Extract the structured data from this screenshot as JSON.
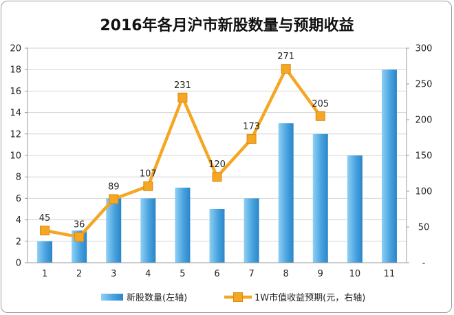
{
  "chart_data": {
    "type": "bar",
    "title": "2016年各月沪市新股数量与预期收益",
    "categories": [
      "1",
      "2",
      "3",
      "4",
      "5",
      "6",
      "7",
      "8",
      "9",
      "10",
      "11"
    ],
    "series": [
      {
        "name": "新股数量(左轴)",
        "type": "bar",
        "axis": "left",
        "color": "#4aa3df",
        "values": [
          2,
          3,
          6,
          6,
          7,
          5,
          6,
          13,
          12,
          10,
          18
        ]
      },
      {
        "name": "1W市值收益预期(元，右轴)",
        "type": "line",
        "axis": "right",
        "color": "#f5a623",
        "values": [
          45,
          36,
          89,
          107,
          231,
          120,
          173,
          271,
          205,
          null,
          null
        ],
        "data_labels": [
          "45",
          "36",
          "89",
          "107",
          "231",
          "120",
          "173",
          "271",
          "205"
        ]
      }
    ],
    "y_left": {
      "min": 0,
      "max": 20,
      "step": 2,
      "ticks": [
        "0",
        "2",
        "4",
        "6",
        "8",
        "10",
        "12",
        "14",
        "16",
        "18",
        "20"
      ]
    },
    "y_right": {
      "min": 0,
      "max": 300,
      "step": 50,
      "ticks": [
        "-",
        "50",
        "100",
        "150",
        "200",
        "250",
        "300"
      ]
    },
    "grid": true,
    "legend_position": "bottom"
  }
}
